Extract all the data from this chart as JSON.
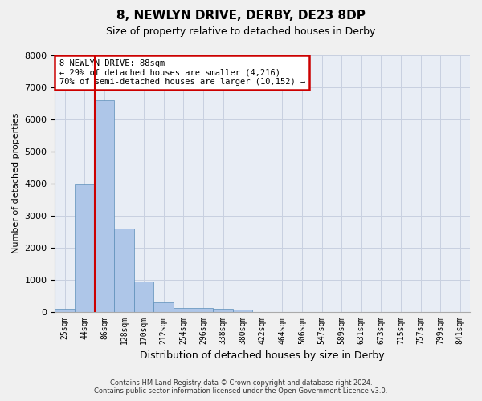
{
  "title": "8, NEWLYN DRIVE, DERBY, DE23 8DP",
  "subtitle": "Size of property relative to detached houses in Derby",
  "xlabel": "Distribution of detached houses by size in Derby",
  "ylabel": "Number of detached properties",
  "bin_labels": [
    "25sqm",
    "44sqm",
    "86sqm",
    "128sqm",
    "170sqm",
    "212sqm",
    "254sqm",
    "296sqm",
    "338sqm",
    "380sqm",
    "422sqm",
    "464sqm",
    "506sqm",
    "547sqm",
    "589sqm",
    "631sqm",
    "673sqm",
    "715sqm",
    "757sqm",
    "799sqm",
    "841sqm"
  ],
  "bar_values": [
    100,
    3980,
    6600,
    2600,
    950,
    300,
    120,
    120,
    100,
    70,
    0,
    0,
    0,
    0,
    0,
    0,
    0,
    0,
    0,
    0,
    0
  ],
  "bar_color": "#aec6e8",
  "bar_edge_color": "#5b8db8",
  "grid_color": "#c8d0e0",
  "bg_color": "#e8edf5",
  "fig_color": "#f0f0f0",
  "vline_color": "#cc0000",
  "vline_x_index": 2,
  "annotation_text": "8 NEWLYN DRIVE: 88sqm\n← 29% of detached houses are smaller (4,216)\n70% of semi-detached houses are larger (10,152) →",
  "annotation_box_color": "#cc0000",
  "ylim": [
    0,
    8000
  ],
  "yticks": [
    0,
    1000,
    2000,
    3000,
    4000,
    5000,
    6000,
    7000,
    8000
  ],
  "footer1": "Contains HM Land Registry data © Crown copyright and database right 2024.",
  "footer2": "Contains public sector information licensed under the Open Government Licence v3.0."
}
